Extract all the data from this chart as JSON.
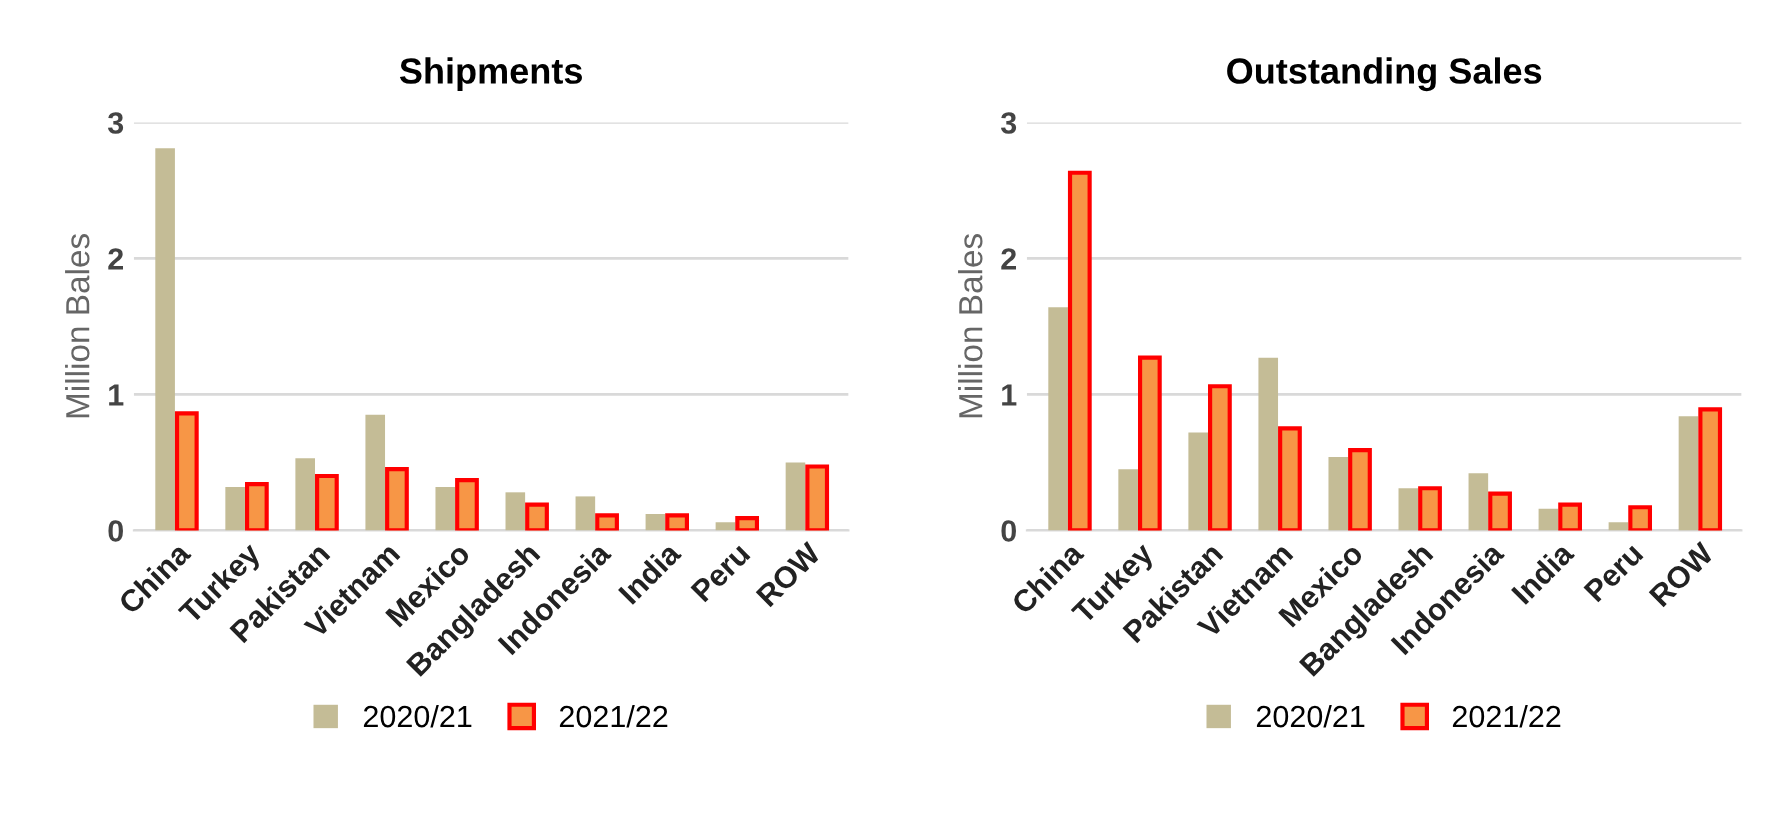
{
  "chart_data": [
    {
      "type": "bar",
      "title": "Shipments",
      "ylabel": "Million Bales",
      "categories": [
        "China",
        "Turkey",
        "Pakistan",
        "Vietnam",
        "Mexico",
        "Bangladesh",
        "Indonesia",
        "India",
        "Peru",
        "ROW"
      ],
      "series": [
        {
          "name": "2020/21",
          "color": "#c4bc96",
          "values": [
            2.81,
            0.32,
            0.53,
            0.85,
            0.32,
            0.28,
            0.25,
            0.12,
            0.06,
            0.5
          ]
        },
        {
          "name": "2021/22",
          "color": "#f79646",
          "values": [
            0.86,
            0.34,
            0.4,
            0.45,
            0.37,
            0.19,
            0.11,
            0.11,
            0.09,
            0.47
          ]
        }
      ],
      "ylim": [
        0,
        3
      ],
      "yticks": [
        0,
        1,
        2,
        3
      ],
      "grid": "y",
      "legend": "bottom"
    },
    {
      "type": "bar",
      "title": "Outstanding Sales",
      "ylabel": "Million Bales",
      "categories": [
        "China",
        "Turkey",
        "Pakistan",
        "Vietnam",
        "Mexico",
        "Bangladesh",
        "Indonesia",
        "India",
        "Peru",
        "ROW"
      ],
      "series": [
        {
          "name": "2020/21",
          "color": "#c4bc96",
          "values": [
            1.64,
            0.45,
            0.72,
            1.27,
            0.54,
            0.31,
            0.42,
            0.16,
            0.06,
            0.84
          ]
        },
        {
          "name": "2021/22",
          "color": "#f79646",
          "values": [
            2.63,
            1.27,
            1.06,
            0.75,
            0.59,
            0.31,
            0.27,
            0.19,
            0.17,
            0.89
          ]
        }
      ],
      "ylim": [
        0,
        3
      ],
      "yticks": [
        0,
        1,
        2,
        3
      ],
      "grid": "y",
      "legend": "bottom"
    }
  ]
}
